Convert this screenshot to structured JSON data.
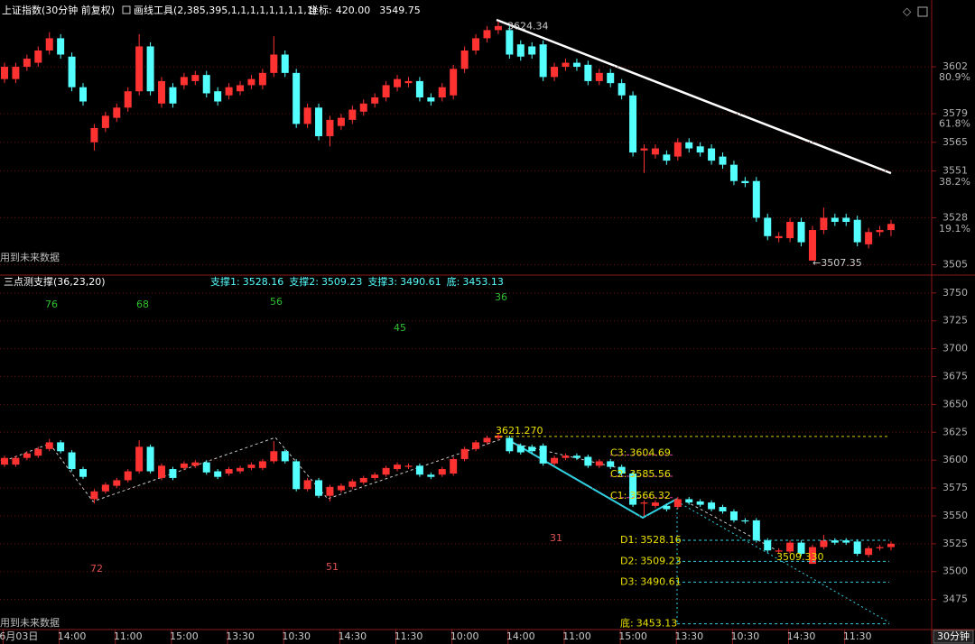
{
  "header": {
    "title": "上证指数(30分钟 前复权)",
    "tool": "画线工具(2,385,395,1,1,1,1,1,1,1,1,1)",
    "coord_label": "坐标:",
    "coord_x": "420.00",
    "coord_y": 3549.75,
    "period": "30分钟"
  },
  "chart_data": [
    {
      "type": "candlestick",
      "categories": [
        null,
        "06月03日",
        null,
        null,
        null,
        null,
        "14:00",
        null,
        null,
        null,
        null,
        "11:00",
        null,
        null,
        null,
        null,
        "15:00",
        null,
        null,
        null,
        null,
        "13:30",
        null,
        null,
        null,
        null,
        "10:30",
        null,
        null,
        null,
        null,
        "14:30",
        null,
        null,
        null,
        null,
        "11:30",
        null,
        null,
        null,
        null,
        "10:00",
        null,
        null,
        null,
        null,
        "14:00",
        null,
        null,
        null,
        null,
        "11:00",
        null,
        null,
        null,
        null,
        "15:00",
        null,
        null,
        null,
        null,
        "13:30",
        null,
        null,
        null,
        null,
        "10:30",
        null,
        null,
        null,
        null,
        "14:30",
        null,
        null,
        null,
        null,
        "11:30",
        null,
        null,
        null
      ],
      "open": [
        3596,
        3596,
        3602,
        3604,
        3610,
        3616,
        3607,
        3592,
        3565,
        3572,
        3577,
        3582,
        3590,
        3612,
        3584,
        3592,
        3593,
        3595,
        3598,
        3590,
        3588,
        3590,
        3593,
        3593,
        3599,
        3608,
        3599,
        3574,
        3582,
        3568,
        3573,
        3576,
        3580,
        3584,
        3587,
        3592,
        3594,
        3595,
        3587,
        3587,
        3588,
        3601,
        3610,
        3616,
        3620,
        3620,
        3613,
        3612,
        3613,
        3597,
        3602,
        3604,
        3603,
        3595,
        3599,
        3594,
        3588,
        3561,
        3559,
        3559,
        3558,
        3565,
        3563,
        3562,
        3558,
        3554,
        3546,
        3546,
        3528,
        3518,
        3518,
        3526,
        3507,
        3522,
        3528,
        3528,
        3527,
        3515,
        3521,
        3522
      ],
      "close": [
        3602,
        3602,
        3606,
        3610,
        3616,
        3608,
        3592,
        3585,
        3572,
        3578,
        3582,
        3590,
        3612,
        3590,
        3595,
        3584,
        3597,
        3598,
        3589,
        3585,
        3592,
        3593,
        3596,
        3599,
        3608,
        3599,
        3574,
        3582,
        3568,
        3576,
        3577,
        3581,
        3584,
        3587,
        3593,
        3596,
        3595,
        3587,
        3585,
        3592,
        3601,
        3610,
        3616,
        3620,
        3622,
        3608,
        3607,
        3608,
        3597,
        3602,
        3604,
        3602,
        3595,
        3599,
        3594,
        3588,
        3560,
        3562,
        3562,
        3556,
        3565,
        3562,
        3560,
        3556,
        3554,
        3546,
        3545,
        3528,
        3519,
        3519,
        3526,
        3516,
        3522,
        3528,
        3526,
        3526,
        3516,
        3521,
        3522,
        3525
      ],
      "high": [
        3604,
        3604,
        3608,
        3612,
        3619,
        3618,
        3609,
        3594,
        3574,
        3580,
        3584,
        3592,
        3618,
        3614,
        3597,
        3594,
        3599,
        3600,
        3600,
        3592,
        3594,
        3595,
        3598,
        3601,
        3617,
        3610,
        3601,
        3584,
        3584,
        3578,
        3579,
        3583,
        3586,
        3589,
        3595,
        3598,
        3597,
        3597,
        3589,
        3594,
        3603,
        3612,
        3618,
        3622,
        3624.34,
        3622,
        3615,
        3614,
        3615,
        3604,
        3606,
        3606,
        3605,
        3601,
        3601,
        3596,
        3590,
        3564,
        3564,
        3561,
        3567,
        3567,
        3565,
        3564,
        3560,
        3556,
        3548,
        3548,
        3530,
        3521,
        3528,
        3528,
        3524,
        3533,
        3530,
        3530,
        3529,
        3523,
        3524,
        3527
      ],
      "low": [
        3594,
        3594,
        3600,
        3602,
        3608,
        3606,
        3590,
        3583,
        3561,
        3570,
        3575,
        3580,
        3588,
        3588,
        3582,
        3582,
        3591,
        3593,
        3587,
        3583,
        3586,
        3588,
        3591,
        3591,
        3597,
        3597,
        3572,
        3572,
        3566,
        3563,
        3571,
        3574,
        3578,
        3582,
        3585,
        3590,
        3592,
        3585,
        3583,
        3585,
        3586,
        3599,
        3608,
        3614,
        3618,
        3606,
        3605,
        3606,
        3595,
        3595,
        3600,
        3600,
        3593,
        3593,
        3592,
        3586,
        3558,
        3550,
        3557,
        3554,
        3556,
        3560,
        3558,
        3554,
        3552,
        3544,
        3543,
        3526,
        3517,
        3516,
        3516,
        3514,
        3507.35,
        3520,
        3524,
        3524,
        3514,
        3513,
        3519,
        3519
      ],
      "up_color": "#ff3232",
      "down_color": "#54ffff",
      "ylim": [
        3503,
        3629
      ],
      "yticks": [
        3505,
        3528,
        3551,
        3565,
        3579,
        3602
      ],
      "fib_levels": [
        {
          "value": 3596.7,
          "label": "80.9%"
        },
        {
          "value": 3574,
          "label": "61.8%"
        },
        {
          "value": 3545.4,
          "label": "38.2%"
        },
        {
          "value": 3522.4,
          "label": "19.1%"
        }
      ],
      "high_label": 3624.34,
      "low_label": {
        "value": 3507.35,
        "label": "←3507.35"
      },
      "note": "用到未来数据",
      "grid": true
    },
    {
      "type": "candlestick",
      "title": "三点测支撑(36,23,20)",
      "supports": [
        {
          "name": "支撑1:",
          "value": 3528.16
        },
        {
          "name": "支撑2:",
          "value": 3509.23
        },
        {
          "name": "支撑3:",
          "value": 3490.61
        },
        {
          "name": "底:",
          "value": 3453.13
        }
      ],
      "ylim": [
        3448,
        3762
      ],
      "yticks": [
        3475,
        3500,
        3525,
        3550,
        3575,
        3600,
        3625,
        3650,
        3675,
        3700,
        3725,
        3750
      ],
      "peak_level": {
        "value": 3621.27,
        "label": "3621.270"
      },
      "c_levels": [
        {
          "name": "C3:",
          "value": 3604.69
        },
        {
          "name": "C2:",
          "value": 3585.56
        },
        {
          "name": "C1:",
          "value": 3566.32
        }
      ],
      "d_names": [
        "D1:",
        "D2:",
        "D3:",
        "底:"
      ],
      "mid_level": {
        "value": 3509.33,
        "label": "3509.330"
      },
      "top_counts": [
        76,
        68,
        56,
        45,
        36
      ],
      "bottom_counts": [
        72,
        51,
        31
      ],
      "note": "用到未来数据",
      "grid": true
    }
  ]
}
